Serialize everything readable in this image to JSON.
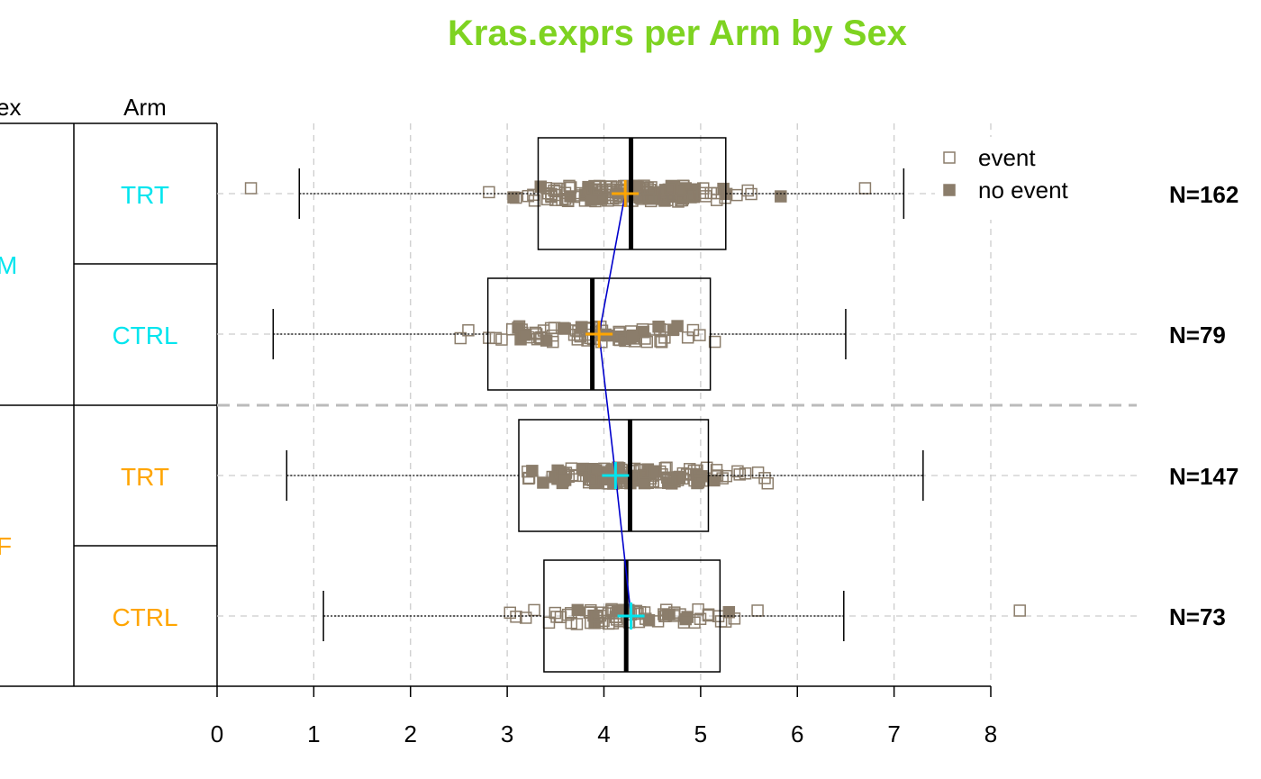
{
  "chart_data": {
    "type": "box",
    "title": "Kras.exprs per Arm by Sex",
    "title_color": "#7ed321",
    "xlim": [
      0,
      8
    ],
    "x_ticks": [
      "0",
      "1",
      "2",
      "3",
      "4",
      "5",
      "6",
      "7",
      "8"
    ],
    "grid": true,
    "column_headers": {
      "sex": "ex",
      "arm": "Arm"
    },
    "legend": {
      "position": "top-right",
      "items": [
        {
          "label": "event",
          "marker": "open-square"
        },
        {
          "label": "no event",
          "marker": "filled-square"
        }
      ]
    },
    "point_color": "#8b7d6b",
    "mean_line_color": "#0000cc",
    "sex_groups": [
      {
        "label": "M",
        "color": "#00e5ee"
      },
      {
        "label": "F",
        "color": "#ffa500"
      }
    ],
    "groups": [
      {
        "sex": "M",
        "arm": "TRT",
        "arm_color": "#00e5ee",
        "n_label": "N=162",
        "whisker_low": 0.85,
        "q1": 3.32,
        "median": 4.28,
        "q3": 5.26,
        "whisker_high": 7.1,
        "mean": 4.22,
        "mean_color": "#ffa500",
        "outliers": [
          0.35,
          6.7
        ]
      },
      {
        "sex": "M",
        "arm": "CTRL",
        "arm_color": "#00e5ee",
        "n_label": "N=79",
        "whisker_low": 0.58,
        "q1": 2.8,
        "median": 3.88,
        "q3": 5.1,
        "whisker_high": 6.5,
        "mean": 3.95,
        "mean_color": "#ffa500",
        "outliers": []
      },
      {
        "sex": "F",
        "arm": "TRT",
        "arm_color": "#ffa500",
        "n_label": "N=147",
        "whisker_low": 0.72,
        "q1": 3.12,
        "median": 4.27,
        "q3": 5.08,
        "whisker_high": 7.3,
        "mean": 4.12,
        "mean_color": "#00e5ee",
        "outliers": []
      },
      {
        "sex": "F",
        "arm": "CTRL",
        "arm_color": "#ffa500",
        "n_label": "N=73",
        "whisker_low": 1.1,
        "q1": 3.38,
        "median": 4.23,
        "q3": 5.2,
        "whisker_high": 6.48,
        "mean": 4.28,
        "mean_color": "#00e5ee",
        "outliers": [
          8.3
        ]
      }
    ]
  }
}
